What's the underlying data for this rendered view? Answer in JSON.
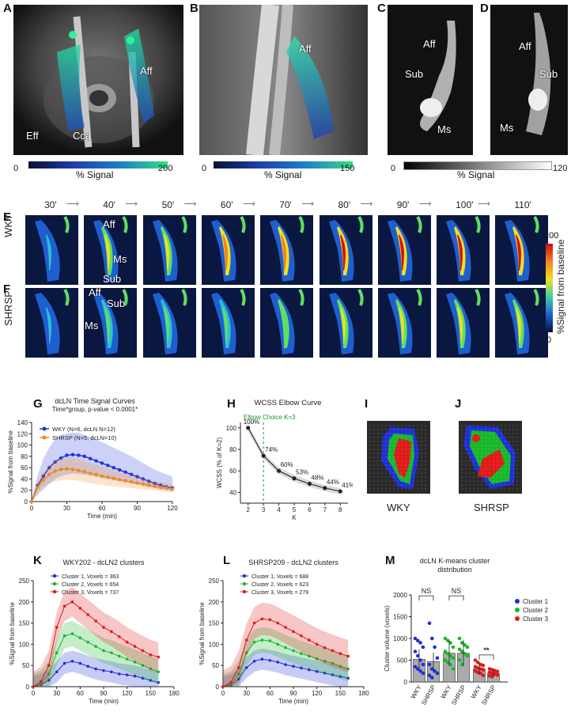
{
  "panels": {
    "A": {
      "letter": "A",
      "labels": [
        "Aff",
        "Eff",
        "Cca"
      ],
      "cbar": {
        "min": "0",
        "max": "200",
        "title": "% Signal"
      }
    },
    "B": {
      "letter": "B",
      "labels": [
        "Aff"
      ],
      "cbar": {
        "min": "0",
        "max": "150",
        "title": "% Signal"
      }
    },
    "C": {
      "letter": "C",
      "labels": [
        "Aff",
        "Sub",
        "Ms"
      ]
    },
    "D": {
      "letter": "D",
      "labels": [
        "Aff",
        "Sub",
        "Ms"
      ]
    },
    "CD_cbar": {
      "min": "0",
      "max": "120",
      "title": "% Signal"
    },
    "E": {
      "letter": "E",
      "row": "WKY",
      "labels": [
        "Aff",
        "Ms",
        "Sub"
      ]
    },
    "F": {
      "letter": "F",
      "row": "SHRSP",
      "labels": [
        "Aff",
        "Sub",
        "Ms"
      ]
    },
    "EF_cbar": {
      "max": "200",
      "min": "0",
      "title": "%Signal from baseline"
    },
    "times": [
      "30'",
      "40'",
      "50'",
      "60'",
      "70'",
      "80'",
      "90'",
      "100'",
      "110'"
    ],
    "I": {
      "letter": "I",
      "caption": "WKY"
    },
    "J": {
      "letter": "J",
      "caption": "SHRSP"
    },
    "G_letter": "G",
    "H_letter": "H",
    "K_letter": "K",
    "L_letter": "L",
    "M_letter": "M"
  },
  "chart_data": [
    {
      "id": "G",
      "type": "line",
      "title": "dcLN Time Signal Curves",
      "subtitle": "Time*group, p-value < 0.0001*",
      "xlabel": "Time (min)",
      "ylabel": "%Signal from baseline",
      "xlim": [
        0,
        120
      ],
      "ylim": [
        0,
        140
      ],
      "xticks": [
        0,
        30,
        60,
        90,
        120
      ],
      "yticks": [
        0,
        20,
        40,
        60,
        80,
        100,
        120,
        140
      ],
      "x": [
        0,
        5,
        10,
        15,
        20,
        25,
        30,
        35,
        40,
        45,
        50,
        55,
        60,
        65,
        70,
        75,
        80,
        85,
        90,
        95,
        100,
        105,
        110,
        115,
        120
      ],
      "series": [
        {
          "name": "WKY (N=6, dcLN N=12)",
          "color": "#2233dd",
          "values": [
            0,
            28,
            45,
            60,
            70,
            77,
            82,
            83,
            82,
            80,
            76,
            72,
            68,
            64,
            60,
            56,
            52,
            48,
            44,
            40,
            36,
            32,
            29,
            26,
            24
          ],
          "upper": [
            0,
            45,
            75,
            95,
            110,
            118,
            120,
            122,
            121,
            118,
            114,
            110,
            105,
            100,
            95,
            90,
            85,
            80,
            74,
            68,
            62,
            56,
            52,
            48,
            44
          ],
          "lower": [
            0,
            12,
            22,
            32,
            40,
            45,
            48,
            50,
            49,
            48,
            46,
            44,
            42,
            40,
            38,
            36,
            34,
            32,
            30,
            28,
            26,
            24,
            22,
            20,
            18
          ]
        },
        {
          "name": "SHRSP (N=5, dcLN=10)",
          "color": "#f08a1c",
          "values": [
            0,
            25,
            38,
            48,
            54,
            57,
            58,
            57,
            55,
            53,
            50,
            48,
            45,
            43,
            41,
            39,
            37,
            35,
            33,
            31,
            29,
            27,
            25,
            24,
            22
          ],
          "upper": [
            0,
            35,
            52,
            65,
            72,
            76,
            78,
            77,
            75,
            72,
            68,
            65,
            62,
            58,
            55,
            52,
            50,
            47,
            44,
            41,
            38,
            36,
            34,
            32,
            30
          ],
          "lower": [
            0,
            15,
            25,
            32,
            36,
            38,
            39,
            38,
            37,
            35,
            33,
            31,
            30,
            28,
            27,
            26,
            25,
            24,
            23,
            22,
            21,
            20,
            19,
            18,
            16
          ]
        }
      ]
    },
    {
      "id": "H",
      "type": "line",
      "title": "WCSS Elbow Curve",
      "xlabel": "K",
      "ylabel": "WCSS (% of K=2)",
      "xlim": [
        1.5,
        8.5
      ],
      "ylim": [
        30,
        105
      ],
      "xticks": [
        2,
        3,
        4,
        5,
        6,
        7,
        8
      ],
      "yticks": [
        40,
        60,
        80,
        100
      ],
      "annotation": "Elbow Choice K=3",
      "elbow_k": 3,
      "x": [
        2,
        3,
        4,
        5,
        6,
        7,
        8
      ],
      "values": [
        100,
        74,
        60,
        53,
        48,
        44,
        41
      ],
      "point_labels": [
        "100%",
        "74%",
        "60%",
        "53%",
        "48%",
        "44%",
        "41%"
      ]
    },
    {
      "id": "K",
      "type": "line",
      "title": "WKY202 - dcLN2 clusters",
      "xlabel": "Time (min)",
      "ylabel": "%Signal from baseline",
      "xlim": [
        0,
        180
      ],
      "ylim": [
        0,
        250
      ],
      "xticks": [
        0,
        30,
        60,
        90,
        120,
        150,
        180
      ],
      "yticks": [
        0,
        50,
        100,
        150,
        200,
        250
      ],
      "x": [
        0,
        10,
        20,
        30,
        40,
        50,
        60,
        70,
        80,
        90,
        100,
        110,
        120,
        130,
        140,
        150,
        160
      ],
      "series": [
        {
          "name": "Cluster 1, Voxels = 363",
          "color": "#1f2fd8",
          "values": [
            0,
            5,
            15,
            35,
            55,
            60,
            55,
            48,
            42,
            38,
            35,
            30,
            28,
            25,
            20,
            15,
            10
          ],
          "band": 25
        },
        {
          "name": "Cluster 2, Voxels = 654",
          "color": "#17b82a",
          "values": [
            0,
            8,
            30,
            80,
            120,
            125,
            115,
            105,
            95,
            85,
            80,
            72,
            65,
            58,
            50,
            42,
            35
          ],
          "band": 30
        },
        {
          "name": "Cluster 3, Voxels = 737",
          "color": "#e11a1a",
          "values": [
            0,
            12,
            50,
            140,
            190,
            200,
            185,
            170,
            155,
            140,
            130,
            118,
            105,
            95,
            85,
            75,
            70
          ],
          "band": 35
        }
      ]
    },
    {
      "id": "L",
      "type": "line",
      "title": "SHRSP209 - dcLN2 clusters",
      "xlabel": "Time (min)",
      "ylabel": "%Signal from baseline",
      "xlim": [
        0,
        180
      ],
      "ylim": [
        0,
        250
      ],
      "xticks": [
        0,
        30,
        60,
        90,
        120,
        150,
        180
      ],
      "yticks": [
        0,
        50,
        100,
        150,
        200,
        250
      ],
      "x": [
        0,
        10,
        20,
        30,
        40,
        50,
        60,
        70,
        80,
        90,
        100,
        110,
        120,
        130,
        140,
        150,
        160
      ],
      "series": [
        {
          "name": "Cluster 1, Voxels = 688",
          "color": "#1f2fd8",
          "values": [
            0,
            4,
            18,
            45,
            60,
            65,
            62,
            58,
            52,
            48,
            44,
            40,
            36,
            32,
            28,
            24,
            20
          ],
          "band": 25
        },
        {
          "name": "Cluster 2, Voxels = 623",
          "color": "#17b82a",
          "values": [
            0,
            6,
            30,
            80,
            105,
            110,
            108,
            100,
            92,
            85,
            78,
            72,
            66,
            60,
            55,
            48,
            42
          ],
          "band": 30
        },
        {
          "name": "Cluster 3, Voxels = 279",
          "color": "#e11a1a",
          "values": [
            0,
            10,
            45,
            110,
            150,
            160,
            158,
            150,
            140,
            130,
            120,
            110,
            100,
            92,
            85,
            78,
            72
          ],
          "band": 38
        }
      ]
    },
    {
      "id": "M",
      "type": "bar",
      "title": "dcLN K-means cluster distribution",
      "ylabel": "Cluster volume (voxels)",
      "ylim": [
        0,
        2000
      ],
      "yticks": [
        0,
        500,
        1000,
        1500,
        2000
      ],
      "categories": [
        "WKY",
        "SHRSP",
        "WKY",
        "SHRSP",
        "WKY",
        "SHRSP"
      ],
      "values": [
        520,
        470,
        660,
        660,
        300,
        200
      ],
      "colors": [
        "#1f2fd8",
        "#1f2fd8",
        "#17b82a",
        "#17b82a",
        "#e11a1a",
        "#e11a1a"
      ],
      "points": [
        [
          1000,
          950,
          900,
          800,
          700,
          600,
          500,
          400,
          350,
          300,
          250,
          200
        ],
        [
          1350,
          1000,
          800,
          550,
          400,
          300,
          250,
          200,
          150,
          100
        ],
        [
          1000,
          950,
          900,
          800,
          700,
          650,
          600,
          550,
          500,
          450,
          400,
          300
        ],
        [
          1000,
          900,
          850,
          800,
          750,
          700,
          650,
          600,
          500,
          400
        ],
        [
          500,
          450,
          400,
          380,
          350,
          320,
          300,
          280,
          250,
          220,
          200,
          150
        ],
        [
          300,
          280,
          260,
          240,
          220,
          200,
          180,
          160,
          140,
          120
        ]
      ],
      "legend": [
        "Cluster 1",
        "Cluster 2",
        "Cluster 3"
      ],
      "significance": [
        "NS",
        "NS",
        "**"
      ]
    }
  ]
}
